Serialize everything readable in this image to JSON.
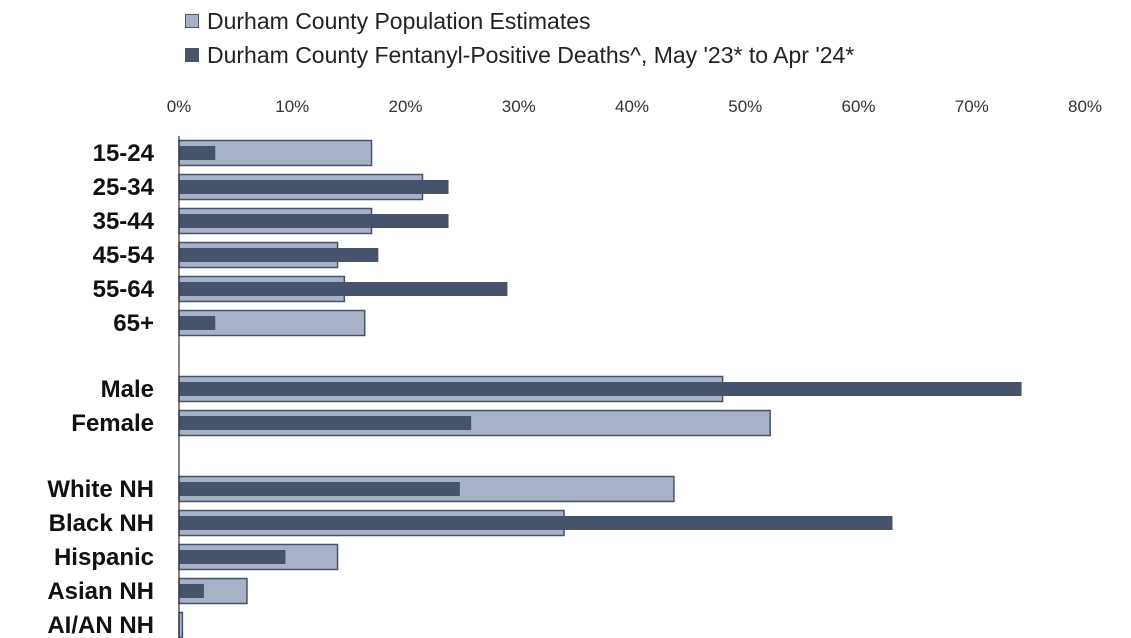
{
  "chart_data": {
    "type": "bar",
    "orientation": "horizontal",
    "categories": [
      "15-24",
      "25-34",
      "35-44",
      "45-54",
      "55-64",
      "65+",
      "Male",
      "Female",
      "White NH",
      "Black NH",
      "Hispanic",
      "Asian NH",
      "AI/AN NH"
    ],
    "groups": [
      [
        0,
        1,
        2,
        3,
        4,
        5
      ],
      [
        6,
        7
      ],
      [
        8,
        9,
        10,
        11,
        12
      ]
    ],
    "series": [
      {
        "name": "Durham County Population Estimates",
        "color": "#a8b2c6",
        "values": [
          17,
          21.5,
          17,
          14,
          14.6,
          16.4,
          48,
          52.2,
          43.7,
          34,
          14,
          6,
          0.3
        ]
      },
      {
        "name": "Durham County Fentanyl-Positive Deaths^, May '23* to Apr '24*",
        "color": "#46536a",
        "values": [
          3.2,
          23.8,
          23.8,
          17.6,
          29,
          3.2,
          74.4,
          25.8,
          24.8,
          63,
          9.4,
          2.2,
          0
        ]
      }
    ],
    "xlim": [
      0,
      80
    ],
    "xticks": [
      "0%",
      "10%",
      "20%",
      "30%",
      "40%",
      "50%",
      "60%",
      "70%",
      "80%"
    ],
    "tick_values": [
      0,
      10,
      20,
      30,
      40,
      50,
      60,
      70,
      80
    ],
    "legend_position": "top",
    "grid": false
  }
}
